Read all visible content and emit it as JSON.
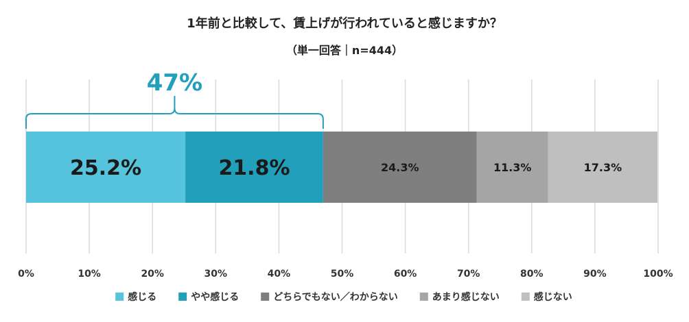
{
  "chart_data": {
    "type": "bar",
    "orientation": "horizontal",
    "stacked": true,
    "title": "1年前と比較して、賃上げが行われていると感じますか？",
    "subtitle": "（単一回答｜n=444）",
    "xlim": [
      0,
      100
    ],
    "x_ticks": [
      "0%",
      "10%",
      "20%",
      "30%",
      "40%",
      "50%",
      "60%",
      "70%",
      "80%",
      "90%",
      "100%"
    ],
    "grid": true,
    "legend_position": "bottom",
    "series": [
      {
        "name": "感じる",
        "value": 25.2,
        "label": "25.2%",
        "color": "#56c4dc"
      },
      {
        "name": "やや感じる",
        "value": 21.8,
        "label": "21.8%",
        "color": "#219fbb"
      },
      {
        "name": "どちらでもない／わからない",
        "value": 24.3,
        "label": "24.3%",
        "color": "#7f7f7f"
      },
      {
        "name": "あまり感じない",
        "value": 11.3,
        "label": "11.3%",
        "color": "#a5a5a5"
      },
      {
        "name": "感じない",
        "value": 17.3,
        "label": "17.3%",
        "color": "#bfbfbf"
      }
    ],
    "annotation": {
      "label": "47%",
      "from": 0,
      "to": 47,
      "color": "#219fbb"
    }
  }
}
